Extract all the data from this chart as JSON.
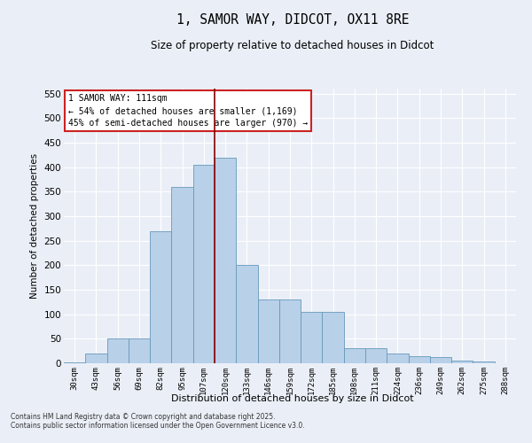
{
  "title": "1, SAMOR WAY, DIDCOT, OX11 8RE",
  "subtitle": "Size of property relative to detached houses in Didcot",
  "xlabel": "Distribution of detached houses by size in Didcot",
  "ylabel": "Number of detached properties",
  "categories": [
    "30sqm",
    "43sqm",
    "56sqm",
    "69sqm",
    "82sqm",
    "95sqm",
    "107sqm",
    "120sqm",
    "133sqm",
    "146sqm",
    "159sqm",
    "172sqm",
    "185sqm",
    "198sqm",
    "211sqm",
    "224sqm",
    "236sqm",
    "249sqm",
    "262sqm",
    "275sqm",
    "288sqm"
  ],
  "values": [
    2,
    20,
    50,
    50,
    270,
    360,
    405,
    420,
    200,
    130,
    130,
    105,
    105,
    30,
    30,
    20,
    15,
    12,
    5,
    3,
    0
  ],
  "bar_color": "#b8d0e8",
  "bar_edge_color": "#6699bb",
  "bg_color": "#eaeff7",
  "grid_color": "#ffffff",
  "vline_x_index": 6,
  "vline_color": "#880000",
  "annotation_title": "1 SAMOR WAY: 111sqm",
  "annotation_line1": "← 54% of detached houses are smaller (1,169)",
  "annotation_line2": "45% of semi-detached houses are larger (970) →",
  "annotation_box_color": "#ffffff",
  "annotation_box_edge": "#cc2222",
  "ylim": [
    0,
    560
  ],
  "yticks": [
    0,
    50,
    100,
    150,
    200,
    250,
    300,
    350,
    400,
    450,
    500,
    550
  ],
  "footnote1": "Contains HM Land Registry data © Crown copyright and database right 2025.",
  "footnote2": "Contains public sector information licensed under the Open Government Licence v3.0."
}
